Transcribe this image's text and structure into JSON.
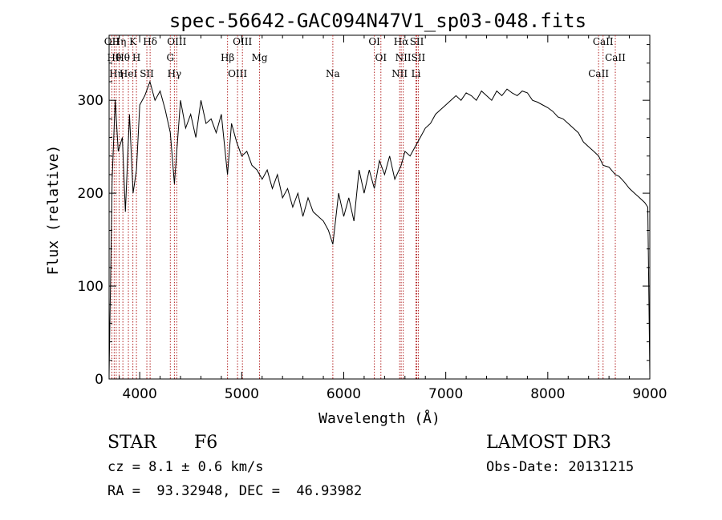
{
  "chart_data": {
    "type": "line",
    "title": "spec-56642-GAC094N47V1_sp03-048.fits",
    "xlabel": "Wavelength (Å)",
    "ylabel": "Flux (relative)",
    "xlim": [
      3700,
      9000
    ],
    "ylim": [
      0,
      370
    ],
    "xticks": [
      4000,
      5000,
      6000,
      7000,
      8000,
      9000
    ],
    "yticks": [
      0,
      100,
      200,
      300
    ],
    "grid": false,
    "series": [
      {
        "x": [
          3700,
          3730,
          3760,
          3790,
          3830,
          3860,
          3900,
          3935,
          3968,
          4000,
          4050,
          4100,
          4150,
          4200,
          4250,
          4300,
          4340,
          4400,
          4450,
          4500,
          4550,
          4600,
          4650,
          4700,
          4750,
          4800,
          4861,
          4900,
          4950,
          5000,
          5050,
          5100,
          5150,
          5200,
          5250,
          5300,
          5350,
          5400,
          5450,
          5500,
          5550,
          5600,
          5650,
          5700,
          5750,
          5800,
          5850,
          5893,
          5950,
          6000,
          6050,
          6100,
          6150,
          6200,
          6250,
          6300,
          6350,
          6400,
          6450,
          6500,
          6563,
          6600,
          6650,
          6700,
          6750,
          6800,
          6850,
          6900,
          6950,
          7000,
          7050,
          7100,
          7150,
          7200,
          7250,
          7300,
          7350,
          7400,
          7450,
          7500,
          7550,
          7600,
          7650,
          7700,
          7750,
          7800,
          7850,
          7900,
          7950,
          8000,
          8050,
          8100,
          8150,
          8200,
          8250,
          8300,
          8350,
          8400,
          8450,
          8498,
          8542,
          8600,
          8662,
          8700,
          8750,
          8800,
          8850,
          8900,
          8950,
          8980,
          9000
        ],
        "y": [
          5,
          215,
          300,
          245,
          260,
          180,
          285,
          200,
          225,
          295,
          305,
          320,
          300,
          310,
          290,
          265,
          210,
          300,
          270,
          285,
          260,
          300,
          275,
          280,
          265,
          285,
          220,
          275,
          255,
          240,
          245,
          230,
          225,
          215,
          225,
          205,
          220,
          195,
          205,
          185,
          200,
          175,
          195,
          180,
          175,
          170,
          160,
          145,
          200,
          175,
          195,
          170,
          225,
          200,
          225,
          205,
          235,
          220,
          240,
          215,
          230,
          245,
          240,
          250,
          260,
          270,
          275,
          285,
          290,
          295,
          300,
          305,
          300,
          308,
          305,
          300,
          310,
          305,
          300,
          310,
          305,
          312,
          308,
          305,
          310,
          308,
          300,
          298,
          295,
          292,
          288,
          282,
          280,
          275,
          270,
          265,
          255,
          250,
          245,
          240,
          230,
          228,
          220,
          218,
          212,
          205,
          200,
          195,
          190,
          185,
          5
        ]
      }
    ],
    "lines": [
      {
        "x": 3727,
        "label": "OII"
      },
      {
        "x": 3750,
        "label": "Hθ"
      },
      {
        "x": 3770,
        "label": "Hη"
      },
      {
        "x": 3798,
        "label": "Hη"
      },
      {
        "x": 3835,
        "label": "Hθ"
      },
      {
        "x": 3889,
        "label": "HeI"
      },
      {
        "x": 3933,
        "label": "K"
      },
      {
        "x": 3968,
        "label": "H"
      },
      {
        "x": 4070,
        "label": "SII"
      },
      {
        "x": 4102,
        "label": "Hδ"
      },
      {
        "x": 4300,
        "label": "G"
      },
      {
        "x": 4340,
        "label": "Hγ"
      },
      {
        "x": 4363,
        "label": "OIII"
      },
      {
        "x": 4861,
        "label": "Hβ"
      },
      {
        "x": 4959,
        "label": "OIII"
      },
      {
        "x": 5007,
        "label": "OIII"
      },
      {
        "x": 5175,
        "label": "Mg"
      },
      {
        "x": 5893,
        "label": "Na"
      },
      {
        "x": 6300,
        "label": "OI"
      },
      {
        "x": 6364,
        "label": "OI"
      },
      {
        "x": 6548,
        "label": "NII"
      },
      {
        "x": 6563,
        "label": "Hα"
      },
      {
        "x": 6583,
        "label": "NII"
      },
      {
        "x": 6708,
        "label": "Li"
      },
      {
        "x": 6716,
        "label": "SII"
      },
      {
        "x": 6731,
        "label": "SII"
      },
      {
        "x": 8498,
        "label": "CaII"
      },
      {
        "x": 8542,
        "label": "CaII"
      },
      {
        "x": 8662,
        "label": "CaII"
      }
    ]
  },
  "info": {
    "obj_class": "STAR",
    "subclass": "F6",
    "survey": "LAMOST DR3",
    "cz": "cz = 8.1 ± 0.6 km/s",
    "obs_date": "Obs-Date: 20131215",
    "coords": "RA =  93.32948, DEC =  46.93982"
  },
  "colors": {
    "spectrum": "#000000",
    "line_markers": "#b22222",
    "axes": "#000000"
  }
}
